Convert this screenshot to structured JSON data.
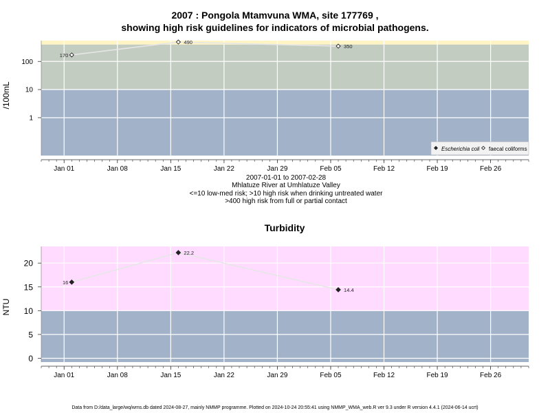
{
  "header": {
    "title_line1": "2007 : Pongola Mtamvuna WMA, site 177769 ,",
    "title_line2": "showing high risk guidelines for indicators of microbial pathogens."
  },
  "info": {
    "date_range": "2007-01-01 to 2007-02-28",
    "site_name": "Mhlatuze River at Umhlatuze Valley",
    "guideline_1": "<=10 low-med risk; >10 high risk when drinking untreated water",
    "guideline_2": ">400 high risk from full or partial contact"
  },
  "footer": {
    "text": "Data from D:/data_large/wq/wms.db dated 2024-08-27, mainly NMMP programme. Plotted on 2024-10-24 20:55:41 using NMMP_WMA_web.R ver 9.3 under R version 4.4.1 (2024-06-14 ucrt)"
  },
  "colors": {
    "low_band": "#a2b2c8",
    "mid_band": "#c3ccc1",
    "high_band": "#fff5c4",
    "turbidity_high_band": "#ffdcff",
    "series_line": "#e6e6e6",
    "grid": "#ffffff"
  },
  "chart_data": [
    {
      "type": "line",
      "title": "",
      "ylabel": "/100mL",
      "y_scale": "log",
      "x_range": [
        "2006-12-29",
        "2007-03-03"
      ],
      "x_ticks": [
        "Jan 01",
        "Jan 08",
        "Jan 15",
        "Jan 22",
        "Jan 29",
        "Feb 05",
        "Feb 12",
        "Feb 19",
        "Feb 26"
      ],
      "x_tick_dates": [
        "2007-01-01",
        "2007-01-08",
        "2007-01-15",
        "2007-01-22",
        "2007-01-29",
        "2007-02-05",
        "2007-02-12",
        "2007-02-19",
        "2007-02-26"
      ],
      "y_ticks": [
        "1",
        "10",
        "100"
      ],
      "y_tick_values": [
        1,
        10,
        100
      ],
      "bands": [
        {
          "from": 0.045,
          "to": 10,
          "color": "#a2b2c8"
        },
        {
          "from": 10,
          "to": 400,
          "color": "#c3ccc1"
        },
        {
          "from": 400,
          "to": 550,
          "color": "#fff5c4"
        }
      ],
      "legend_position": "bottom-right",
      "series": [
        {
          "name": "faecal coliforms",
          "marker": "open-diamond",
          "x": [
            "2007-01-02",
            "2007-01-16",
            "2007-02-06"
          ],
          "y": [
            170,
            490,
            350
          ],
          "labels": [
            "170",
            "490",
            "350"
          ]
        }
      ],
      "legend": [
        {
          "name": "Escherichia coli",
          "marker": "filled-diamond",
          "italic": true
        },
        {
          "name": "faecal coliforms",
          "marker": "open-diamond",
          "italic": false
        }
      ]
    },
    {
      "type": "line",
      "title": "Turbidity",
      "ylabel": "NTU",
      "y_scale": "linear",
      "x_range": [
        "2006-12-29",
        "2007-03-03"
      ],
      "x_ticks": [
        "Jan 01",
        "Jan 08",
        "Jan 15",
        "Jan 22",
        "Jan 29",
        "Feb 05",
        "Feb 12",
        "Feb 19",
        "Feb 26"
      ],
      "x_tick_dates": [
        "2007-01-01",
        "2007-01-08",
        "2007-01-15",
        "2007-01-22",
        "2007-01-29",
        "2007-02-05",
        "2007-02-12",
        "2007-02-19",
        "2007-02-26"
      ],
      "ylim": [
        -0.8,
        23.5
      ],
      "y_ticks": [
        "0",
        "5",
        "10",
        "15",
        "20"
      ],
      "y_tick_values": [
        0,
        5,
        10,
        15,
        20
      ],
      "bands": [
        {
          "from": -0.8,
          "to": 10,
          "color": "#a2b2c8"
        },
        {
          "from": 10,
          "to": 23.5,
          "color": "#ffdcff"
        }
      ],
      "series": [
        {
          "name": "",
          "marker": "filled-diamond",
          "x": [
            "2007-01-02",
            "2007-01-16",
            "2007-02-06"
          ],
          "y": [
            16,
            22.2,
            14.4
          ],
          "labels": [
            "16",
            "22.2",
            "14.4"
          ]
        }
      ]
    }
  ]
}
